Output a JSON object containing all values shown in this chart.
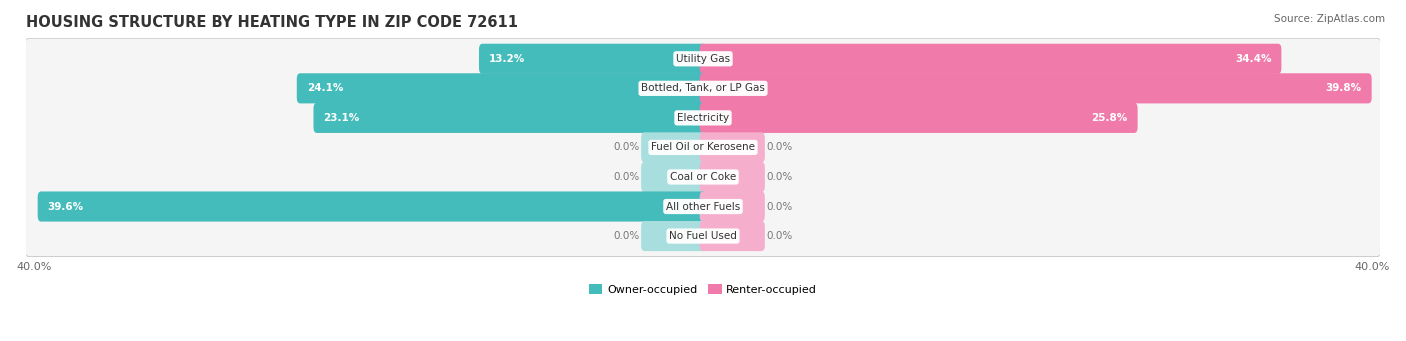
{
  "title": "HOUSING STRUCTURE BY HEATING TYPE IN ZIP CODE 72611",
  "source": "Source: ZipAtlas.com",
  "categories": [
    "Utility Gas",
    "Bottled, Tank, or LP Gas",
    "Electricity",
    "Fuel Oil or Kerosene",
    "Coal or Coke",
    "All other Fuels",
    "No Fuel Used"
  ],
  "owner_values": [
    13.2,
    24.1,
    23.1,
    0.0,
    0.0,
    39.6,
    0.0
  ],
  "renter_values": [
    34.4,
    39.8,
    25.8,
    0.0,
    0.0,
    0.0,
    0.0
  ],
  "owner_color": "#45BCBC",
  "owner_color_light": "#A8DEDE",
  "renter_color": "#F07BAA",
  "renter_color_light": "#F5AFCD",
  "row_bg_color_odd": "#F0F0F0",
  "row_bg_color_even": "#E6E6E6",
  "row_bg_inner": "#FAFAFA",
  "max_val": 40.0,
  "zero_stub": 3.5,
  "title_fontsize": 10.5,
  "source_fontsize": 7.5,
  "bar_label_fontsize": 7.5,
  "category_fontsize": 7.5,
  "axis_fontsize": 8,
  "legend_fontsize": 8,
  "background_color": "#FFFFFF"
}
